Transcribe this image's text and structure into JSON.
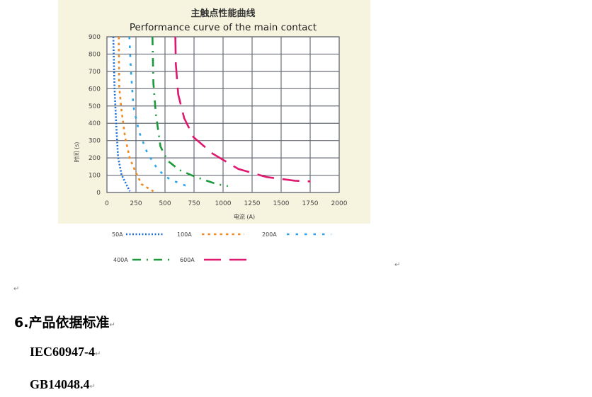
{
  "document": {
    "paragraph_mark": "↵",
    "section_heading": "6.产品依据标准",
    "standards": [
      "IEC60947-4",
      "GB14048.4"
    ]
  },
  "chart_data": {
    "type": "line",
    "title": "主触点性能曲线",
    "subtitle": "Performance curve of the main contact",
    "xlabel": "电流 (A)",
    "ylabel": "时间 (s)",
    "xlim": [
      0,
      2000
    ],
    "ylim": [
      0,
      900
    ],
    "x_ticks": [
      "0",
      "250",
      "500",
      "750",
      "1000",
      "1250",
      "1500",
      "1750",
      "2000"
    ],
    "y_ticks": [
      "0",
      "100",
      "200",
      "300",
      "400",
      "500",
      "600",
      "700",
      "800",
      "900"
    ],
    "grid": true,
    "legend_position": "bottom",
    "series": [
      {
        "name": "50A",
        "color": "#1a6fd6",
        "dash": "2 2.5",
        "points": [
          [
            55,
            900
          ],
          [
            65,
            607
          ],
          [
            79,
            402
          ],
          [
            96,
            205
          ],
          [
            126,
            102
          ],
          [
            197,
            7
          ]
        ]
      },
      {
        "name": "100A",
        "color": "#f08a24",
        "dash": "3.5 5",
        "points": [
          [
            102,
            900
          ],
          [
            106,
            607
          ],
          [
            126,
            470
          ],
          [
            156,
            320
          ],
          [
            197,
            198
          ],
          [
            248,
            116
          ],
          [
            299,
            48
          ],
          [
            400,
            7
          ]
        ]
      },
      {
        "name": "200A",
        "color": "#2aa3ea",
        "dash": "3.5 9",
        "points": [
          [
            193,
            900
          ],
          [
            207,
            702
          ],
          [
            228,
            498
          ],
          [
            278,
            348
          ],
          [
            350,
            225
          ],
          [
            441,
            130
          ],
          [
            543,
            75
          ],
          [
            726,
            27
          ]
        ]
      },
      {
        "name": "400A",
        "color": "#1a9a3a",
        "dash": "12 8 2 8",
        "points": [
          [
            392,
            900
          ],
          [
            400,
            634
          ],
          [
            421,
            457
          ],
          [
            461,
            266
          ],
          [
            522,
            184
          ],
          [
            624,
            130
          ],
          [
            766,
            89
          ],
          [
            949,
            48
          ],
          [
            1041,
            37
          ]
        ]
      },
      {
        "name": "600A",
        "color": "#e0176f",
        "dash": "24 12",
        "points": [
          [
            589,
            900
          ],
          [
            593,
            743
          ],
          [
            614,
            566
          ],
          [
            665,
            430
          ],
          [
            746,
            320
          ],
          [
            909,
            225
          ],
          [
            1132,
            136
          ],
          [
            1376,
            89
          ],
          [
            1620,
            68
          ],
          [
            1752,
            64
          ]
        ]
      }
    ]
  }
}
